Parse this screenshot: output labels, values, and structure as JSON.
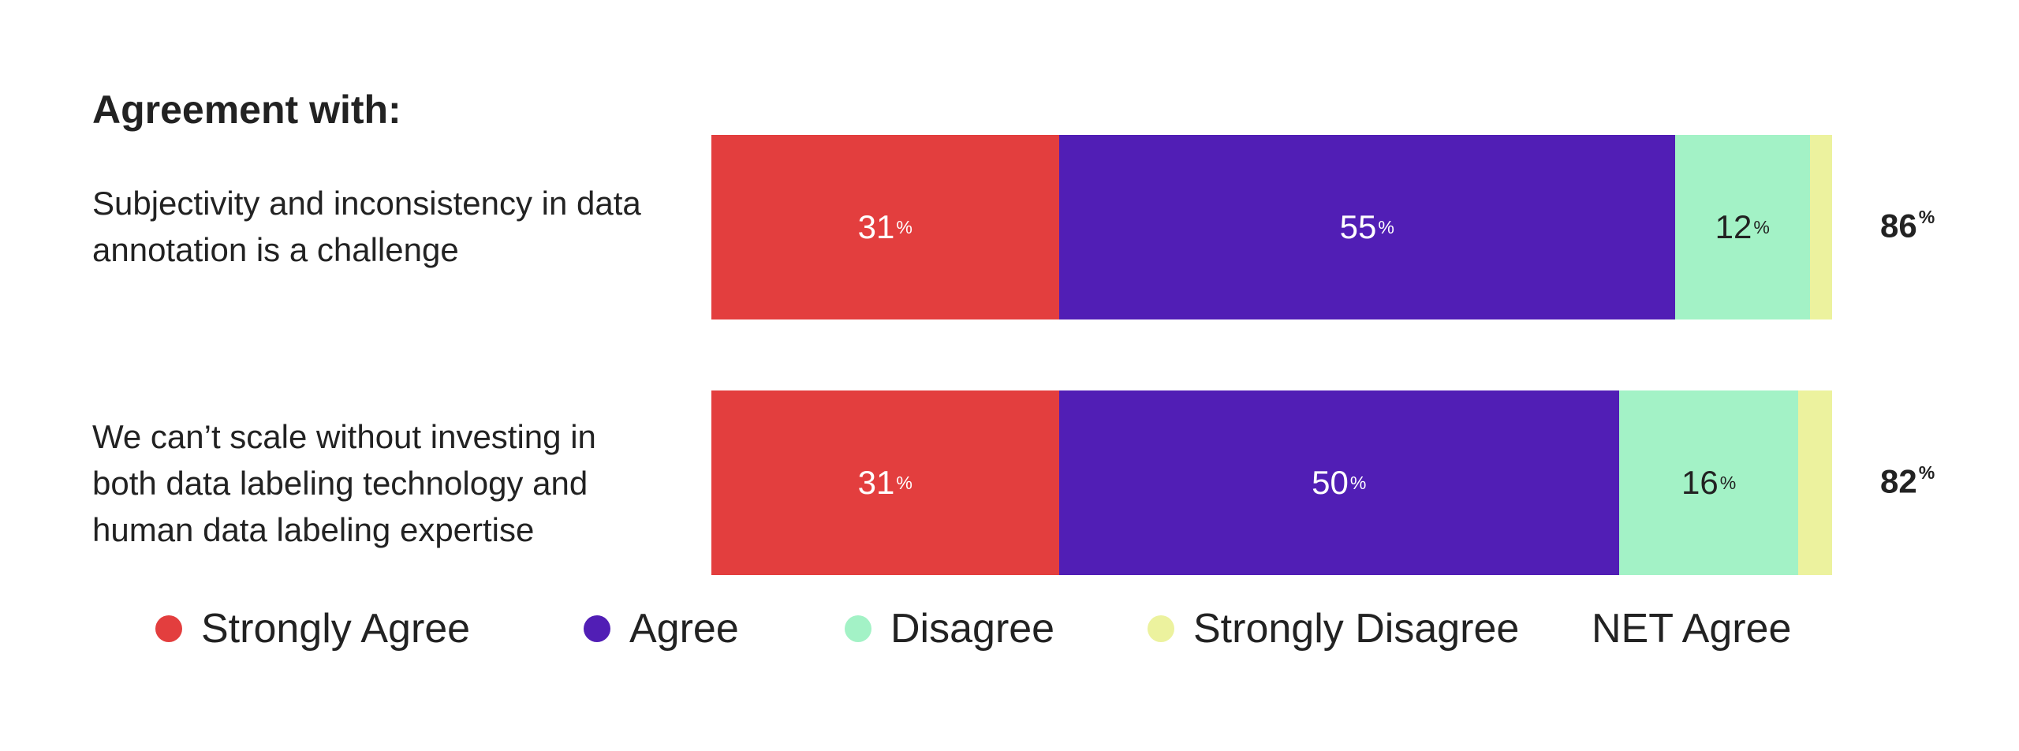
{
  "chart_data": {
    "type": "bar",
    "orientation": "horizontal",
    "stacked": true,
    "percent_symbol": "%",
    "title": "Agreement with:",
    "categories": [
      "Subjectivity and inconsistency in data annotation is a challenge",
      "We can’t scale without investing in both data labeling technology and human data labeling expertise"
    ],
    "series": [
      {
        "name": "Strongly Agree",
        "color": "#e33e3e",
        "text_color": "#ffffff",
        "values": [
          31,
          31
        ],
        "labels": [
          "31",
          "31"
        ]
      },
      {
        "name": "Agree",
        "color": "#511eb5",
        "text_color": "#ffffff",
        "values": [
          55,
          50
        ],
        "labels": [
          "55",
          "50"
        ]
      },
      {
        "name": "Disagree",
        "color": "#a3f2c6",
        "text_color": "#222222",
        "values": [
          12,
          16
        ],
        "labels": [
          "12",
          "16"
        ]
      },
      {
        "name": "Strongly Disagree",
        "color": "#ecf29e",
        "text_color": "#222222",
        "values": [
          2,
          3
        ],
        "labels": [
          "",
          ""
        ]
      }
    ],
    "net_label": "NET Agree",
    "net_values": [
      "86",
      "82"
    ],
    "xlim": [
      0,
      100
    ],
    "grid": false,
    "legend_position": "bottom"
  }
}
